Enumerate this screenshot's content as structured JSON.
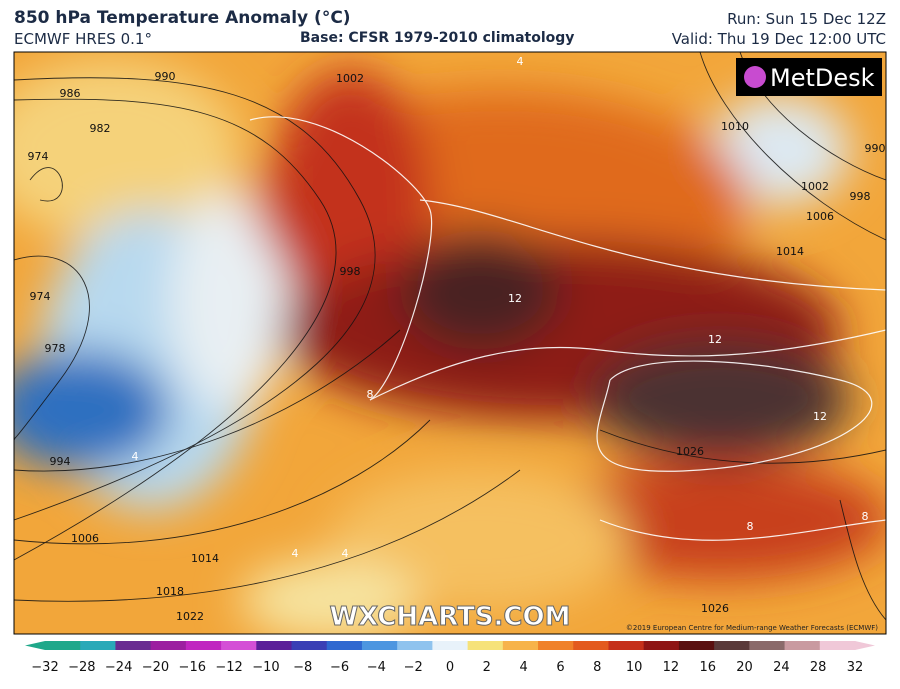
{
  "header": {
    "title": "850 hPa Temperature Anomaly (°C)",
    "model": "ECMWF HRES 0.1°",
    "base": "Base: CFSR 1979-2010 climatology",
    "run": "Run: Sun 15 Dec 12Z",
    "valid": "Valid: Thu 19 Dec 12:00 UTC"
  },
  "logo": "MetDesk",
  "watermark": "WXCHARTS.COM",
  "copyright": "©2019 European Centre for Medium-range Weather Forecasts (ECMWF)",
  "isobar_labels": [
    "990",
    "986",
    "982",
    "974",
    "974",
    "978",
    "994",
    "1006",
    "1014",
    "1018",
    "1022",
    "1002",
    "998",
    "1010",
    "1002",
    "998",
    "1006",
    "1014",
    "990",
    "1026",
    "1026"
  ],
  "anomaly_labels": [
    "4",
    "4",
    "8",
    "12",
    "12",
    "12",
    "8",
    "4",
    "4",
    "8"
  ],
  "colorbar": {
    "ticks": [
      "−32",
      "−28",
      "−24",
      "−20",
      "−16",
      "−12",
      "−10",
      "−8",
      "−6",
      "−4",
      "−2",
      "0",
      "2",
      "4",
      "6",
      "8",
      "10",
      "12",
      "16",
      "20",
      "24",
      "28",
      "32"
    ],
    "colors": [
      "#1fa88a",
      "#2aa9b8",
      "#6a2c91",
      "#9c1fa0",
      "#c026c0",
      "#d44fd6",
      "#5b1f99",
      "#3a3fb5",
      "#2f68d0",
      "#4d96e0",
      "#8fc3ee",
      "#e8f2fa",
      "#f6e27a",
      "#f7b34a",
      "#f0812a",
      "#e35a1e",
      "#c5301b",
      "#8e1515",
      "#5a1010",
      "#5a3a3a",
      "#8a6a6a",
      "#c99aa0",
      "#f0c8d8"
    ]
  }
}
